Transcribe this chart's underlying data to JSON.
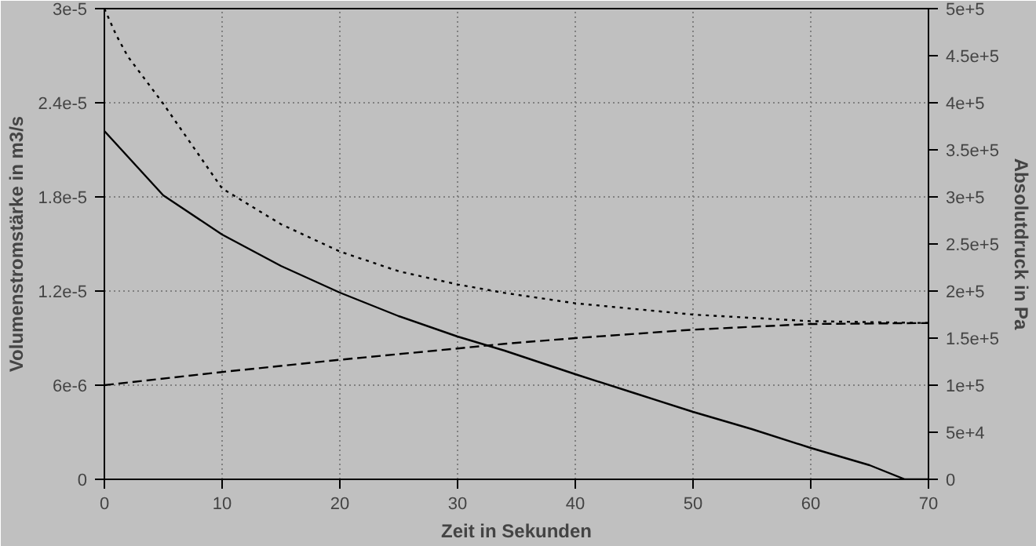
{
  "chart_data": {
    "type": "line",
    "xlabel": "Zeit in Sekunden",
    "ylabel": "Volumenstromstärke in m3/s",
    "y2label": "Absolutdruck in Pa",
    "xlim": [
      0,
      70
    ],
    "xticks": [
      0,
      10,
      20,
      30,
      40,
      50,
      60,
      70
    ],
    "ylim": [
      0,
      3e-05
    ],
    "yticks": [
      0,
      {
        "value": 6e-06,
        "label": "6e-6"
      },
      {
        "value": 1.2e-05,
        "label": "1.2e-5"
      },
      {
        "value": 1.8e-05,
        "label": "1.8e-5"
      },
      {
        "value": 2.4e-05,
        "label": "2.4e-5"
      },
      {
        "value": 3e-05,
        "label": "3e-5"
      }
    ],
    "y2lim": [
      0,
      500000
    ],
    "y2ticks": [
      0,
      {
        "value": 50000,
        "label": "5e+4"
      },
      {
        "value": 100000,
        "label": "1e+5"
      },
      {
        "value": 150000,
        "label": "1.5e+5"
      },
      {
        "value": 200000,
        "label": "2e+5"
      },
      {
        "value": 250000,
        "label": "2.5e+5"
      },
      {
        "value": 300000,
        "label": "3e+5"
      },
      {
        "value": 350000,
        "label": "3.5e+5"
      },
      {
        "value": 400000,
        "label": "4e+5"
      },
      {
        "value": 450000,
        "label": "4.5e+5"
      },
      {
        "value": 500000,
        "label": "5e+5"
      }
    ],
    "grid": true,
    "marker": "none",
    "series": [
      {
        "color": "#000000",
        "line_style": "solid",
        "axis": "y",
        "x": [
          0,
          5,
          10,
          15,
          20,
          25,
          30,
          34,
          36,
          40,
          45,
          50,
          55,
          60,
          65,
          68,
          70
        ],
        "values": [
          2.22e-05,
          1.81e-05,
          1.56e-05,
          1.36e-05,
          1.19e-05,
          1.04e-05,
          9.1e-06,
          8.2e-06,
          7.7e-06,
          6.7e-06,
          5.5e-06,
          4.3e-06,
          3.2e-06,
          2e-06,
          9e-07,
          0,
          0
        ]
      },
      {
        "color": "#000000",
        "line_style": "dashed",
        "axis": "y2",
        "x": [
          0,
          10,
          20,
          30,
          34,
          40,
          50,
          60,
          70
        ],
        "values": [
          100000,
          114000,
          127000,
          139000,
          144000,
          150000,
          159000,
          165000,
          166000
        ]
      },
      {
        "color": "#000000",
        "line_style": "dotted",
        "axis": "y2",
        "x": [
          0,
          1,
          2,
          5,
          10,
          15,
          20,
          25,
          30,
          34,
          40,
          50,
          60,
          70
        ],
        "values": [
          500000,
          472000,
          449000,
          399000,
          309000,
          271000,
          242000,
          221000,
          207000,
          198000,
          187000,
          175000,
          168000,
          166000
        ]
      }
    ]
  }
}
